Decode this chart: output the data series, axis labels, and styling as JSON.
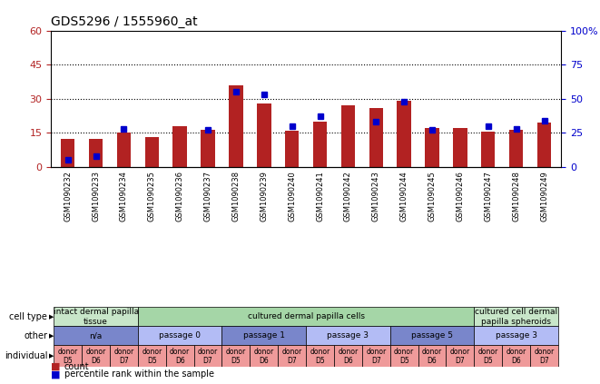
{
  "title": "GDS5296 / 1555960_at",
  "samples": [
    "GSM1090232",
    "GSM1090233",
    "GSM1090234",
    "GSM1090235",
    "GSM1090236",
    "GSM1090237",
    "GSM1090238",
    "GSM1090239",
    "GSM1090240",
    "GSM1090241",
    "GSM1090242",
    "GSM1090243",
    "GSM1090244",
    "GSM1090245",
    "GSM1090246",
    "GSM1090247",
    "GSM1090248",
    "GSM1090249"
  ],
  "counts": [
    12.5,
    12.5,
    15.0,
    13.0,
    18.0,
    16.5,
    36.0,
    28.0,
    16.0,
    20.0,
    27.0,
    26.0,
    29.0,
    17.0,
    17.0,
    15.5,
    16.5,
    19.5
  ],
  "percentiles": [
    5.0,
    8.0,
    28.0,
    null,
    null,
    27.0,
    55.0,
    53.0,
    30.0,
    37.0,
    null,
    33.0,
    48.0,
    27.0,
    null,
    30.0,
    28.0,
    34.0
  ],
  "ylim_left": [
    0,
    60
  ],
  "ylim_right": [
    0,
    100
  ],
  "yticks_left": [
    0,
    15,
    30,
    45,
    60
  ],
  "yticks_right": [
    0,
    25,
    50,
    75,
    100
  ],
  "bar_color": "#b22222",
  "blue_color": "#0000cc",
  "cell_type_groups": [
    {
      "label": "intact dermal papilla\ntissue",
      "start": 0,
      "end": 3,
      "color": "#c8e6c9"
    },
    {
      "label": "cultured dermal papilla cells",
      "start": 3,
      "end": 15,
      "color": "#a5d6a7"
    },
    {
      "label": "cultured cell dermal\npapilla spheroids",
      "start": 15,
      "end": 18,
      "color": "#c8e6c9"
    }
  ],
  "other_groups": [
    {
      "label": "n/a",
      "start": 0,
      "end": 3,
      "color": "#7986cb"
    },
    {
      "label": "passage 0",
      "start": 3,
      "end": 6,
      "color": "#b3bcf5"
    },
    {
      "label": "passage 1",
      "start": 6,
      "end": 9,
      "color": "#7986cb"
    },
    {
      "label": "passage 3",
      "start": 9,
      "end": 12,
      "color": "#b3bcf5"
    },
    {
      "label": "passage 5",
      "start": 12,
      "end": 15,
      "color": "#7986cb"
    },
    {
      "label": "passage 3",
      "start": 15,
      "end": 18,
      "color": "#b3bcf5"
    }
  ],
  "individual_donors": [
    "D5",
    "D6",
    "D7",
    "D5",
    "D6",
    "D7",
    "D5",
    "D6",
    "D7",
    "D5",
    "D6",
    "D7",
    "D5",
    "D6",
    "D7",
    "D5",
    "D6",
    "D7"
  ],
  "individual_color": "#ef9a9a",
  "row_labels": [
    "cell type",
    "other",
    "individual"
  ],
  "legend_count_color": "#b22222",
  "legend_percentile_color": "#0000cc",
  "xticklabel_bg": "#d0d0d0"
}
